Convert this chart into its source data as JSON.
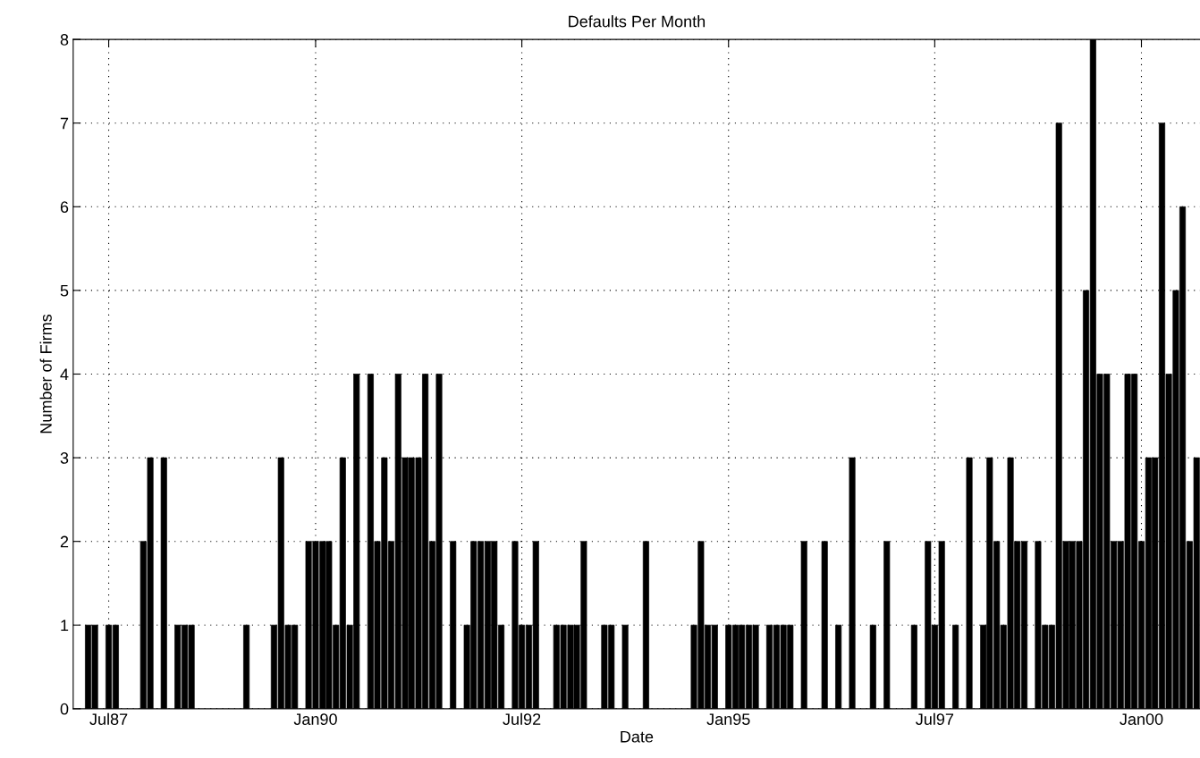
{
  "chart_data": {
    "type": "bar",
    "title": "Defaults Per Month",
    "xlabel": "Date",
    "ylabel": "Number of Firms",
    "x": [
      "1987-04",
      "1987-05",
      "1987-07",
      "1987-08",
      "1987-12",
      "1988-01",
      "1988-03",
      "1988-05",
      "1988-06",
      "1988-07",
      "1989-03",
      "1989-07",
      "1989-08",
      "1989-09",
      "1989-10",
      "1989-12",
      "1990-01",
      "1990-02",
      "1990-03",
      "1990-04",
      "1990-05",
      "1990-06",
      "1990-07",
      "1990-09",
      "1990-10",
      "1990-11",
      "1990-12",
      "1991-01",
      "1991-02",
      "1991-03",
      "1991-04",
      "1991-05",
      "1991-06",
      "1991-07",
      "1991-09",
      "1991-11",
      "1991-12",
      "1992-01",
      "1992-02",
      "1992-03",
      "1992-04",
      "1992-06",
      "1992-07",
      "1992-08",
      "1992-09",
      "1992-12",
      "1993-01",
      "1993-02",
      "1993-03",
      "1993-04",
      "1993-07",
      "1993-08",
      "1993-10",
      "1994-01",
      "1994-08",
      "1994-09",
      "1994-10",
      "1994-11",
      "1995-01",
      "1995-02",
      "1995-03",
      "1995-04",
      "1995-05",
      "1995-07",
      "1995-08",
      "1995-09",
      "1995-10",
      "1995-12",
      "1996-03",
      "1996-05",
      "1996-07",
      "1996-10",
      "1996-12",
      "1997-04",
      "1997-06",
      "1997-07",
      "1997-08",
      "1997-10",
      "1997-12",
      "1998-02",
      "1998-03",
      "1998-04",
      "1998-05",
      "1998-06",
      "1998-07",
      "1998-08",
      "1998-10",
      "1998-11",
      "1998-12",
      "1999-01",
      "1999-02",
      "1999-03",
      "1999-04",
      "1999-05",
      "1999-06",
      "1999-07",
      "1999-08",
      "1999-09",
      "1999-10",
      "1999-11",
      "1999-12",
      "2000-01",
      "2000-02",
      "2000-03",
      "2000-04",
      "2000-05",
      "2000-06",
      "2000-07",
      "2000-08",
      "2000-09"
    ],
    "values": [
      1,
      1,
      1,
      1,
      2,
      3,
      3,
      1,
      1,
      1,
      1,
      1,
      3,
      1,
      1,
      2,
      2,
      2,
      2,
      1,
      3,
      1,
      4,
      4,
      2,
      3,
      2,
      4,
      3,
      3,
      3,
      4,
      2,
      4,
      2,
      1,
      2,
      2,
      2,
      2,
      1,
      2,
      1,
      1,
      2,
      1,
      1,
      1,
      1,
      2,
      1,
      1,
      1,
      2,
      1,
      2,
      1,
      1,
      1,
      1,
      1,
      1,
      1,
      1,
      1,
      1,
      1,
      2,
      2,
      1,
      3,
      1,
      2,
      1,
      2,
      1,
      2,
      1,
      3,
      1,
      3,
      2,
      1,
      3,
      2,
      2,
      2,
      1,
      1,
      7,
      2,
      2,
      2,
      5,
      8,
      4,
      4,
      2,
      2,
      4,
      4,
      2,
      3,
      3,
      7,
      4,
      5,
      6,
      2,
      3
    ],
    "color": "#000000",
    "xlim": [
      "1987-01-25",
      "2000-09-16"
    ],
    "xticks": [
      {
        "value": "1987-07-01",
        "label": "Jul87"
      },
      {
        "value": "1990-01-01",
        "label": "Jan90"
      },
      {
        "value": "1992-07-01",
        "label": "Jul92"
      },
      {
        "value": "1995-01-01",
        "label": "Jan95"
      },
      {
        "value": "1997-07-01",
        "label": "Jul97"
      },
      {
        "value": "2000-01-01",
        "label": "Jan00"
      }
    ],
    "ylim": [
      0,
      8
    ],
    "yticks": [
      0,
      1,
      2,
      3,
      4,
      5,
      6,
      7,
      8
    ],
    "grid": true
  }
}
